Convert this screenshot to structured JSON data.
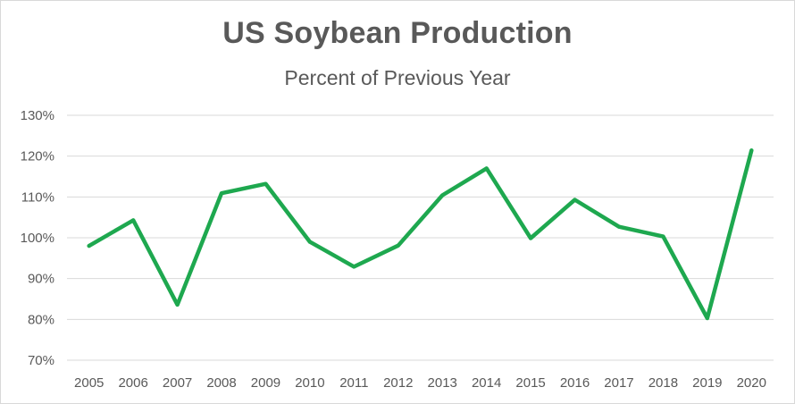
{
  "chart_data": {
    "type": "line",
    "title": "US Soybean Production",
    "subtitle": "Percent of Previous Year",
    "xlabel": "",
    "ylabel": "",
    "x": [
      "2005",
      "2006",
      "2007",
      "2008",
      "2009",
      "2010",
      "2011",
      "2012",
      "2013",
      "2014",
      "2015",
      "2016",
      "2017",
      "2018",
      "2019",
      "2020"
    ],
    "y": [
      98,
      104.3,
      83.6,
      110.9,
      113.2,
      99,
      92.9,
      98.1,
      110.4,
      117,
      99.9,
      109.3,
      102.7,
      100.3,
      80.3,
      121.4
    ],
    "y_unit": "%",
    "ylim": [
      70,
      130
    ],
    "yticks": [
      70,
      80,
      90,
      100,
      110,
      120,
      130
    ],
    "ytick_labels": [
      "70%",
      "80%",
      "90%",
      "100%",
      "110%",
      "120%",
      "130%"
    ],
    "grid": true,
    "legend": "none",
    "line_color": "#1ea84f",
    "grid_color": "#d9d9d9"
  }
}
